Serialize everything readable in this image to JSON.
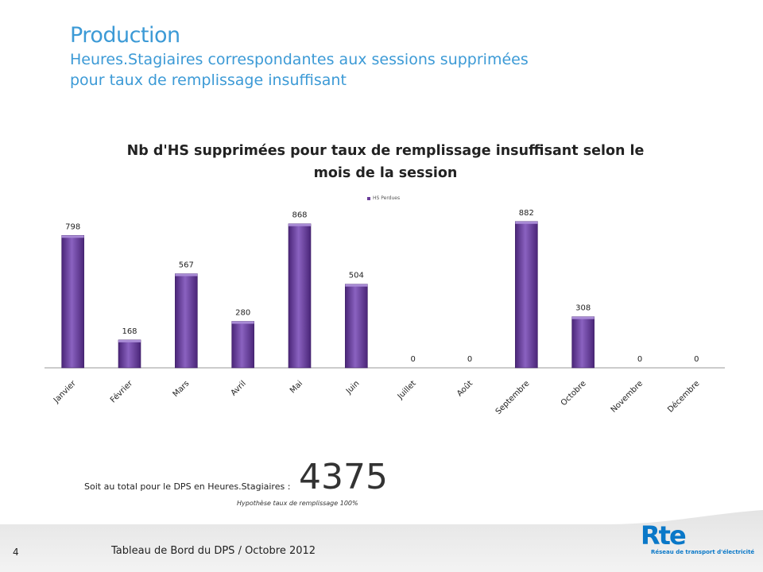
{
  "header": {
    "title": "Production",
    "subtitle_line1": "Heures.Stagiaires correspondantes aux sessions supprimées",
    "subtitle_line2": "pour taux de remplissage insuffisant"
  },
  "chart_data": {
    "type": "bar",
    "title_line1": "Nb d'HS supprimées pour taux de remplissage insuffisant selon le",
    "title_line2": "mois de la session",
    "categories": [
      "Janvier",
      "Février",
      "Mars",
      "Avril",
      "Mai",
      "Juin",
      "Juillet",
      "Août",
      "Septembre",
      "Octobre",
      "Novembre",
      "Décembre"
    ],
    "series": [
      {
        "name": "HS Perdues",
        "values": [
          798,
          168,
          567,
          280,
          868,
          504,
          0,
          0,
          882,
          308,
          0,
          0
        ]
      }
    ],
    "data_labels": [
      "798",
      "168",
      "567",
      "280",
      "868",
      "504",
      "0",
      "0",
      "882",
      "308",
      "0",
      "0"
    ],
    "ylim": [
      0,
      900
    ],
    "legend_position": "top",
    "bar_color": "#6a3d9a"
  },
  "summary": {
    "total_label": "Soit au total pour le DPS en Heures.Stagiaires :",
    "total_value": "4375",
    "hypothesis": "Hypothèse taux de remplissage 100%"
  },
  "footer": {
    "page_number": "4",
    "text": "Tableau de Bord du DPS / Octobre 2012",
    "logo_mark": "Rte",
    "logo_text": "Réseau de transport d'électricité"
  }
}
